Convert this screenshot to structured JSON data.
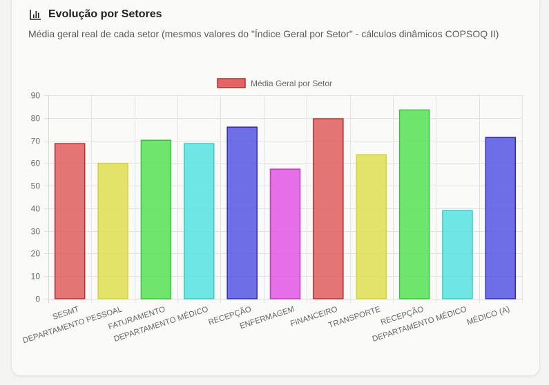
{
  "header": {
    "icon": "bar-chart-icon",
    "title": "Evolução por Setores",
    "subtitle": "Média geral real de cada setor (mesmos valores do \"Índice Geral por Setor\" - cálculos dinâmicos COPSOQ II)"
  },
  "chart_data": {
    "type": "bar",
    "title": "",
    "xlabel": "",
    "ylabel": "",
    "ylim": [
      0,
      90
    ],
    "yticks": [
      0,
      10,
      20,
      30,
      40,
      50,
      60,
      70,
      80,
      90
    ],
    "grid": true,
    "legend_position": "top",
    "categories": [
      "SESMT",
      "DEPARTAMENTO PESSOAL",
      "FATURAMENTO",
      "DEPARTAMENTO MÉDICO",
      "RECEPÇÃO",
      "ENFERMAGEM",
      "FINANCEIRO",
      "TRANSPORTE",
      "RECEPÇÃO",
      "DEPARTAMENTO MÉDICO",
      "MÉDICO (A)"
    ],
    "series": [
      {
        "name": "Média Geral por Setor",
        "values": [
          68.6,
          59.9,
          70.1,
          68.6,
          75.9,
          57.3,
          79.6,
          63.7,
          83.5,
          39.0,
          71.3
        ]
      }
    ],
    "bar_colors": [
      {
        "fill": "#e06666",
        "stroke": "#c62828"
      },
      {
        "fill": "#e0e05a",
        "stroke": "#d4d43a"
      },
      {
        "fill": "#5ee35e",
        "stroke": "#3cc43c"
      },
      {
        "fill": "#5ee3e3",
        "stroke": "#3cc8c8"
      },
      {
        "fill": "#5e5ee3",
        "stroke": "#2a2ac0"
      },
      {
        "fill": "#e35ee3",
        "stroke": "#c23cc2"
      },
      {
        "fill": "#e06666",
        "stroke": "#c62828"
      },
      {
        "fill": "#e0e05a",
        "stroke": "#d4d43a"
      },
      {
        "fill": "#5ee35e",
        "stroke": "#3cc43c"
      },
      {
        "fill": "#5ee3e3",
        "stroke": "#3cc8c8"
      },
      {
        "fill": "#5e5ee3",
        "stroke": "#2a2ac0"
      }
    ],
    "legend": {
      "label": "Média Geral por Setor",
      "fill": "#e06666",
      "stroke": "#c62828"
    }
  }
}
